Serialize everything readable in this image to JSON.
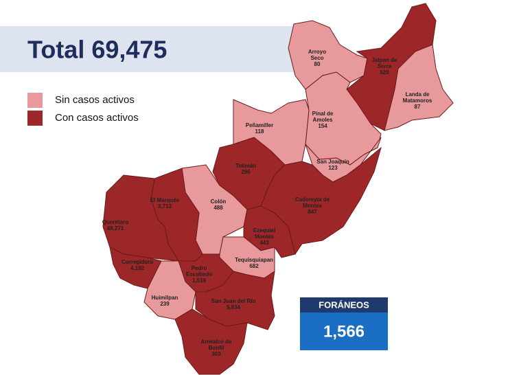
{
  "title": "Total 69,475",
  "legend": [
    {
      "label": "Sin casos activos",
      "color": "#e8999b"
    },
    {
      "label": "Con casos activos",
      "color": "#9c2628"
    }
  ],
  "regions": [
    {
      "name": "Arroyo\nSeco",
      "value": "80",
      "color": "#e8999b"
    },
    {
      "name": "Jalpan de\nSerra",
      "value": "520",
      "color": "#9c2628"
    },
    {
      "name": "Landa de\nMatamoros",
      "value": "87",
      "color": "#e8999b"
    },
    {
      "name": "Pinal de\nAmoles",
      "value": "154",
      "color": "#e8999b"
    },
    {
      "name": "Peñamiller",
      "value": "118",
      "color": "#e8999b"
    },
    {
      "name": "San Joaquín",
      "value": "123",
      "color": "#e8999b"
    },
    {
      "name": "Tolimán",
      "value": "296",
      "color": "#9c2628"
    },
    {
      "name": "Cadereyta de\nMontes",
      "value": "847",
      "color": "#9c2628"
    },
    {
      "name": "Colón",
      "value": "488",
      "color": "#e8999b"
    },
    {
      "name": "El  Marqués",
      "value": "3,713",
      "color": "#9c2628"
    },
    {
      "name": "Querétaro",
      "value": "48,271",
      "color": "#9c2628"
    },
    {
      "name": "Ezequiel\nMontes",
      "value": "443",
      "color": "#9c2628"
    },
    {
      "name": "Tequisquiapan",
      "value": "682",
      "color": "#e8999b"
    },
    {
      "name": "Corregidora",
      "value": "4,192",
      "color": "#9c2628"
    },
    {
      "name": "Pedro\nEscobedo",
      "value": "1,519",
      "color": "#9c2628"
    },
    {
      "name": "Huimilpan",
      "value": "239",
      "color": "#e8999b"
    },
    {
      "name": "San Juan del Río",
      "value": "5,834",
      "color": "#9c2628"
    },
    {
      "name": "Amealco de\nBonfil",
      "value": "303",
      "color": "#9c2628"
    }
  ],
  "foraneos": {
    "label": "FORÁNEOS",
    "value": "1,566"
  }
}
